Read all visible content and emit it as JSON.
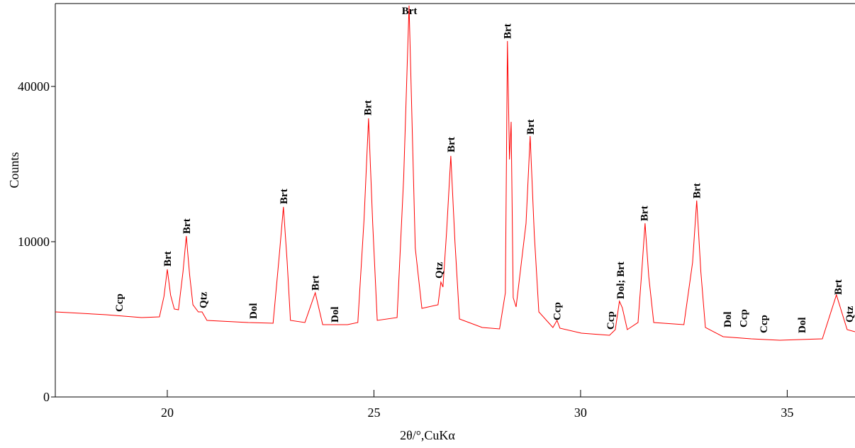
{
  "chart_data": {
    "type": "line",
    "x_label": "2θ/°,CuKα",
    "y_label": "Counts",
    "yscale": "sqrt",
    "xlim": [
      17.29,
      36.64
    ],
    "ylim": [
      0,
      64200
    ],
    "xticks": [
      20,
      25,
      30,
      35
    ],
    "yticks": [
      0,
      10000,
      40000
    ],
    "series": [
      {
        "color": "#ff0000",
        "x": [
          17.29,
          18.52,
          19.38,
          19.81,
          19.92,
          20.0,
          20.08,
          20.17,
          20.27,
          20.38,
          20.46,
          20.54,
          20.62,
          20.75,
          20.84,
          20.96,
          21.96,
          22.56,
          22.7,
          22.81,
          22.9,
          22.98,
          23.33,
          23.58,
          23.76,
          24.36,
          24.61,
          24.76,
          24.87,
          24.97,
          25.08,
          25.56,
          25.72,
          25.85,
          26.0,
          26.16,
          26.55,
          26.62,
          26.67,
          26.76,
          26.86,
          26.96,
          27.07,
          27.62,
          28.04,
          28.18,
          28.23,
          28.28,
          28.32,
          28.37,
          28.44,
          28.68,
          28.78,
          28.88,
          28.99,
          29.33,
          29.43,
          29.5,
          30.02,
          30.7,
          30.84,
          30.94,
          31.01,
          31.13,
          31.39,
          31.48,
          31.56,
          31.65,
          31.77,
          32.5,
          32.71,
          32.81,
          32.91,
          33.02,
          33.45,
          34.13,
          34.82,
          35.85,
          36.19,
          36.45,
          36.64
        ],
        "values": [
          3002,
          2806,
          2615,
          2662,
          4200,
          6755,
          4300,
          3206,
          3154,
          6500,
          10744,
          6200,
          3524,
          3002,
          3002,
          2432,
          2299,
          2255,
          7800,
          14975,
          7600,
          2432,
          2299,
          4505,
          2169,
          2169,
          2299,
          13000,
          32203,
          12500,
          2432,
          2615,
          20037,
          63530,
          9195,
          3258,
          3524,
          5472,
          5010,
          11500,
          24103,
          10000,
          2523,
          2003,
          1922,
          4500,
          52542,
          23400,
          31389,
          4087,
          3363,
          12500,
          28237,
          11000,
          3002,
          2003,
          2432,
          1962,
          1689,
          1578,
          1882,
          3800,
          3300,
          1882,
          2299,
          6500,
          12515,
          6000,
          2299,
          2169,
          7500,
          15998,
          6500,
          2003,
          1506,
          1402,
          1334,
          1402,
          4324,
          1882,
          1765
        ]
      }
    ],
    "annotations": [
      {
        "text": "Ccp",
        "x": 18.83,
        "y": 3002
      },
      {
        "text": "Brt",
        "x": 20.0,
        "y": 7059
      },
      {
        "text": "Brt",
        "x": 20.46,
        "y": 11030
      },
      {
        "text": "Qtz",
        "x": 20.87,
        "y": 3258
      },
      {
        "text": "Dol",
        "x": 22.08,
        "y": 2523
      },
      {
        "text": "Brt",
        "x": 22.81,
        "y": 15426
      },
      {
        "text": "Brt",
        "x": 23.58,
        "y": 4691
      },
      {
        "text": "Dol",
        "x": 24.05,
        "y": 2299
      },
      {
        "text": "Brt",
        "x": 24.85,
        "y": 32862
      },
      {
        "text": "Brt",
        "x": 25.86,
        "y": 60350,
        "horizontal": true
      },
      {
        "text": "Qtz",
        "x": 26.57,
        "y": 5815
      },
      {
        "text": "Brt",
        "x": 26.86,
        "y": 24817
      },
      {
        "text": "Brt",
        "x": 28.23,
        "y": 53173
      },
      {
        "text": "Brt",
        "x": 28.78,
        "y": 28544
      },
      {
        "text": "Ccp",
        "x": 29.43,
        "y": 2432
      },
      {
        "text": "Ccp",
        "x": 30.72,
        "y": 1882
      },
      {
        "text": "Dol; Brt",
        "x": 30.96,
        "y": 3971
      },
      {
        "text": "Brt",
        "x": 31.54,
        "y": 12823
      },
      {
        "text": "Brt",
        "x": 32.81,
        "y": 16347
      },
      {
        "text": "Dol",
        "x": 33.55,
        "y": 2003
      },
      {
        "text": "Ccp",
        "x": 33.94,
        "y": 2003
      },
      {
        "text": "Ccp",
        "x": 34.43,
        "y": 1689
      },
      {
        "text": "Dol",
        "x": 35.35,
        "y": 1689
      },
      {
        "text": "Brt",
        "x": 36.23,
        "y": 4324
      },
      {
        "text": "Qtz",
        "x": 36.5,
        "y": 2299
      }
    ]
  }
}
